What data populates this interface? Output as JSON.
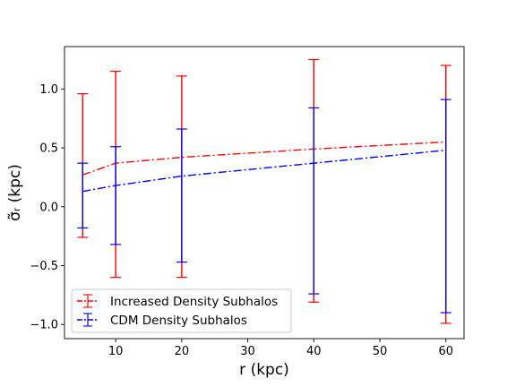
{
  "chart_data": {
    "type": "line",
    "title": "",
    "xlabel": "r (kpc)",
    "ylabel": "σ̃ᵣ (kpc)",
    "xlim": [
      2.25,
      62.75
    ],
    "ylim": [
      -1.12,
      1.36
    ],
    "xticks": [
      10,
      20,
      30,
      40,
      50,
      60
    ],
    "xtick_labels": [
      "10",
      "20",
      "30",
      "40",
      "50",
      "60"
    ],
    "yticks": [
      -1.0,
      -0.5,
      0.0,
      0.5,
      1.0
    ],
    "ytick_labels": [
      "−1.0",
      "−0.5",
      "0.0",
      "0.5",
      "1.0"
    ],
    "grid": false,
    "legend_position": "lower-left",
    "series": [
      {
        "name": "Increased Density Subhalos",
        "color": "#ff0000",
        "linestyle": "dashdot",
        "x": [
          5,
          10,
          20,
          40,
          60
        ],
        "y": [
          0.27,
          0.37,
          0.42,
          0.49,
          0.55
        ],
        "yerr_low": [
          -0.26,
          -0.6,
          -0.6,
          -0.81,
          -0.99
        ],
        "yerr_high": [
          0.96,
          1.15,
          1.11,
          1.25,
          1.2
        ]
      },
      {
        "name": "CDM Density Subhalos",
        "color": "#0000ff",
        "linestyle": "dashdot",
        "x": [
          5,
          10,
          20,
          40,
          60
        ],
        "y": [
          0.13,
          0.18,
          0.26,
          0.37,
          0.48
        ],
        "yerr_low": [
          -0.18,
          -0.32,
          -0.47,
          -0.74,
          -0.9
        ],
        "yerr_high": [
          0.37,
          0.51,
          0.66,
          0.84,
          0.91
        ]
      }
    ]
  }
}
